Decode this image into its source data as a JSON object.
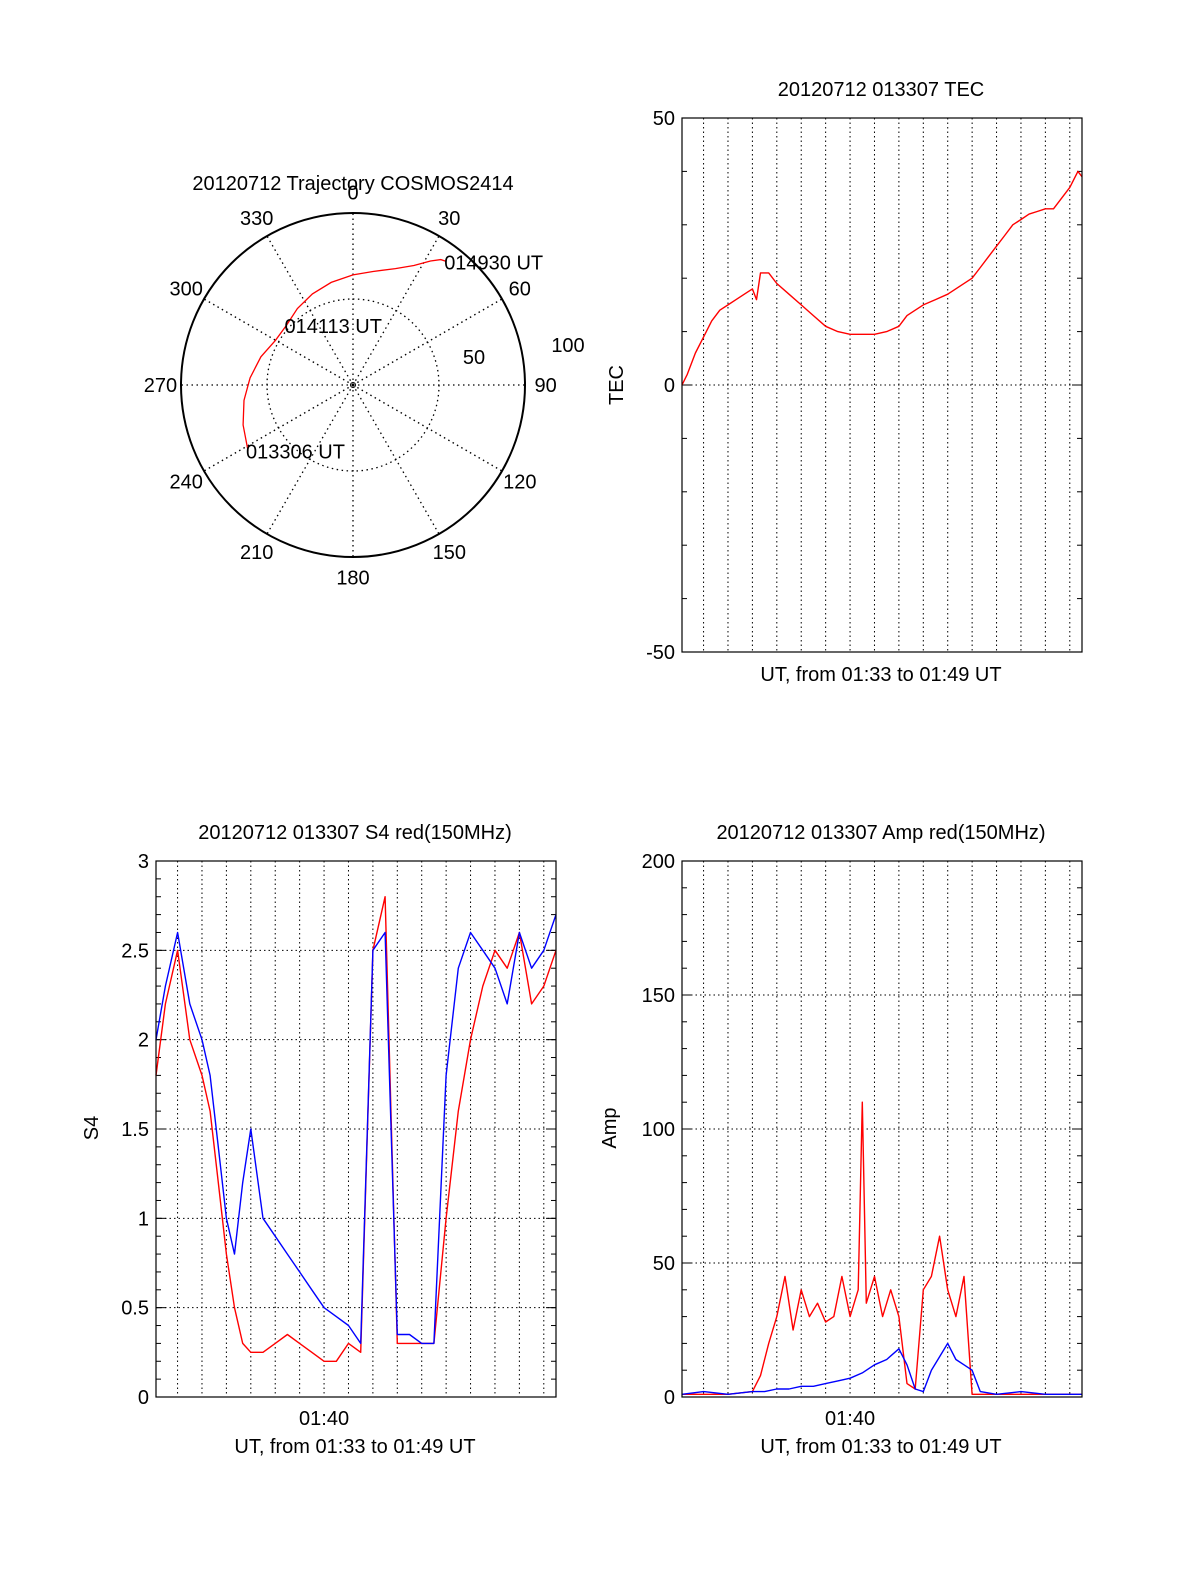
{
  "colors": {
    "red": "#ff0000",
    "blue": "#0000ff",
    "axis": "#000000",
    "grid": "#000000"
  },
  "chart_data": [
    {
      "type": "polar",
      "title": "20120712 Trajectory COSMOS2414",
      "angle_labels": [
        "0",
        "30",
        "60",
        "90",
        "120",
        "150",
        "180",
        "210",
        "240",
        "270",
        "300",
        "330"
      ],
      "radius_labels": [
        "50",
        "100"
      ],
      "rlim": [
        0,
        100
      ],
      "grid": true,
      "series": [
        {
          "color": "red",
          "points": [
            [
              238,
              72
            ],
            [
              250,
              68
            ],
            [
              262,
              64
            ],
            [
              274,
              60
            ],
            [
              287,
              56
            ],
            [
              300,
              52
            ],
            [
              312,
              52
            ],
            [
              324,
              55
            ],
            [
              336,
              58
            ],
            [
              348,
              61
            ],
            [
              360,
              64
            ],
            [
              10,
              67
            ],
            [
              20,
              72
            ],
            [
              27,
              78
            ],
            [
              32,
              85
            ],
            [
              35,
              89
            ],
            [
              37,
              90
            ]
          ]
        }
      ],
      "annotations": [
        {
          "text": "013306 UT",
          "az": 238,
          "r": 72
        },
        {
          "text": "014113 UT",
          "az": 312,
          "r": 52
        },
        {
          "text": "014930 UT",
          "az": 37,
          "r": 90
        }
      ]
    },
    {
      "type": "line",
      "title": "20120712 013307 TEC",
      "xlabel": "UT, from 01:33 to 01:49 UT",
      "ylabel": "TEC",
      "xlim": [
        "01:33:07",
        "01:49:30"
      ],
      "ylim": [
        -50,
        50
      ],
      "yticks": [
        "50",
        "0",
        "-50"
      ],
      "grid": true,
      "series": [
        {
          "color": "red",
          "x": [
            "01:33:07",
            "01:33:20",
            "01:33:40",
            "01:34:00",
            "01:34:20",
            "01:34:40",
            "01:35:00",
            "01:35:20",
            "01:35:40",
            "01:36:00",
            "01:36:10",
            "01:36:20",
            "01:36:40",
            "01:37:00",
            "01:37:30",
            "01:38:00",
            "01:38:30",
            "01:39:00",
            "01:39:30",
            "01:40:00",
            "01:40:30",
            "01:41:00",
            "01:41:30",
            "01:42:00",
            "01:42:20",
            "01:42:40",
            "01:43:00",
            "01:43:30",
            "01:44:00",
            "01:44:30",
            "01:45:00",
            "01:45:20",
            "01:45:40",
            "01:46:00",
            "01:46:20",
            "01:46:40",
            "01:47:00",
            "01:47:20",
            "01:47:40",
            "01:48:00",
            "01:48:20",
            "01:48:40",
            "01:49:00",
            "01:49:20",
            "01:49:30"
          ],
          "y": [
            0,
            2,
            6,
            9,
            12,
            14,
            15,
            16,
            17,
            18,
            16,
            21,
            21,
            19,
            17,
            15,
            13,
            11,
            10,
            9.5,
            9.5,
            9.5,
            10,
            11,
            13,
            14,
            15,
            16,
            17,
            18.5,
            20,
            22,
            24,
            26,
            28,
            30,
            31,
            32,
            32.5,
            33,
            33,
            35,
            37,
            40,
            39
          ]
        }
      ]
    },
    {
      "type": "line",
      "title": "20120712 013307 S4 red(150MHz)",
      "xlabel": "UT, from 01:33 to 01:49 UT",
      "ylabel": "S4",
      "xlim": [
        "01:33:07",
        "01:49:30"
      ],
      "ylim": [
        0,
        3
      ],
      "yticks": [
        "3",
        "2.5",
        "2",
        "1.5",
        "1",
        "0.5",
        "0"
      ],
      "xticks": [
        "01:40"
      ],
      "grid": true,
      "series": [
        {
          "color": "red",
          "x": [
            "01:33:07",
            "01:33:30",
            "01:34:00",
            "01:34:30",
            "01:35:00",
            "01:35:20",
            "01:35:40",
            "01:36:00",
            "01:36:20",
            "01:36:40",
            "01:37:00",
            "01:37:30",
            "01:38:00",
            "01:38:30",
            "01:39:00",
            "01:39:30",
            "01:40:00",
            "01:40:30",
            "01:41:00",
            "01:41:30",
            "01:42:00",
            "01:42:30",
            "01:43:00",
            "01:43:30",
            "01:44:00",
            "01:44:30",
            "01:45:00",
            "01:45:30",
            "01:46:00",
            "01:46:30",
            "01:47:00",
            "01:47:30",
            "01:48:00",
            "01:48:30",
            "01:49:00",
            "01:49:30"
          ],
          "y": [
            1.8,
            2.2,
            2.5,
            2.0,
            1.8,
            1.6,
            1.2,
            0.8,
            0.5,
            0.3,
            0.25,
            0.25,
            0.3,
            0.35,
            0.3,
            0.25,
            0.2,
            0.2,
            0.3,
            0.25,
            2.5,
            2.8,
            0.3,
            0.3,
            0.3,
            0.3,
            1.0,
            1.6,
            2.0,
            2.3,
            2.5,
            2.4,
            2.6,
            2.2,
            2.3,
            2.5
          ]
        },
        {
          "color": "blue",
          "x": [
            "01:33:07",
            "01:33:30",
            "01:34:00",
            "01:34:30",
            "01:35:00",
            "01:35:20",
            "01:35:40",
            "01:36:00",
            "01:36:20",
            "01:36:40",
            "01:37:00",
            "01:37:30",
            "01:38:00",
            "01:38:30",
            "01:39:00",
            "01:39:30",
            "01:40:00",
            "01:40:30",
            "01:41:00",
            "01:41:30",
            "01:42:00",
            "01:42:30",
            "01:43:00",
            "01:43:30",
            "01:44:00",
            "01:44:30",
            "01:45:00",
            "01:45:30",
            "01:46:00",
            "01:46:30",
            "01:47:00",
            "01:47:30",
            "01:48:00",
            "01:48:30",
            "01:49:00",
            "01:49:30"
          ],
          "y": [
            2.0,
            2.3,
            2.6,
            2.2,
            2.0,
            1.8,
            1.4,
            1.0,
            0.8,
            1.2,
            1.5,
            1.0,
            0.9,
            0.8,
            0.7,
            0.6,
            0.5,
            0.45,
            0.4,
            0.3,
            2.5,
            2.6,
            0.35,
            0.35,
            0.3,
            0.3,
            1.8,
            2.4,
            2.6,
            2.5,
            2.4,
            2.2,
            2.6,
            2.4,
            2.5,
            2.7
          ]
        }
      ]
    },
    {
      "type": "line",
      "title": "20120712 013307 Amp red(150MHz)",
      "xlabel": "UT, from 01:33 to 01:49 UT",
      "ylabel": "Amp",
      "xlim": [
        "01:33:07",
        "01:49:30"
      ],
      "ylim": [
        0,
        200
      ],
      "yticks": [
        "200",
        "150",
        "100",
        "50",
        "0"
      ],
      "xticks": [
        "01:40"
      ],
      "grid": true,
      "series": [
        {
          "color": "red",
          "x": [
            "01:33:07",
            "01:34:00",
            "01:35:00",
            "01:36:00",
            "01:36:20",
            "01:36:40",
            "01:37:00",
            "01:37:20",
            "01:37:40",
            "01:38:00",
            "01:38:20",
            "01:38:40",
            "01:39:00",
            "01:39:20",
            "01:39:40",
            "01:40:00",
            "01:40:20",
            "01:40:30",
            "01:40:40",
            "01:41:00",
            "01:41:20",
            "01:41:40",
            "01:42:00",
            "01:42:20",
            "01:42:40",
            "01:43:00",
            "01:43:20",
            "01:43:40",
            "01:44:00",
            "01:44:20",
            "01:44:40",
            "01:45:00",
            "01:45:20",
            "01:46:00",
            "01:47:00",
            "01:48:00",
            "01:49:30"
          ],
          "y": [
            1,
            1,
            1,
            2,
            8,
            20,
            30,
            45,
            25,
            40,
            30,
            35,
            28,
            30,
            45,
            30,
            40,
            110,
            35,
            45,
            30,
            40,
            30,
            5,
            3,
            40,
            45,
            60,
            40,
            30,
            45,
            1,
            1,
            1,
            1,
            1,
            1
          ]
        },
        {
          "color": "blue",
          "x": [
            "01:33:07",
            "01:34:00",
            "01:35:00",
            "01:36:00",
            "01:36:30",
            "01:37:00",
            "01:37:30",
            "01:38:00",
            "01:38:30",
            "01:39:00",
            "01:39:30",
            "01:40:00",
            "01:40:30",
            "01:41:00",
            "01:41:30",
            "01:42:00",
            "01:42:20",
            "01:42:40",
            "01:43:00",
            "01:43:20",
            "01:43:40",
            "01:44:00",
            "01:44:20",
            "01:44:40",
            "01:45:00",
            "01:45:20",
            "01:46:00",
            "01:47:00",
            "01:48:00",
            "01:49:30"
          ],
          "y": [
            1,
            2,
            1,
            2,
            2,
            3,
            3,
            4,
            4,
            5,
            6,
            7,
            9,
            12,
            14,
            18,
            12,
            3,
            2,
            10,
            15,
            20,
            14,
            12,
            10,
            2,
            1,
            2,
            1,
            1
          ]
        }
      ]
    }
  ]
}
